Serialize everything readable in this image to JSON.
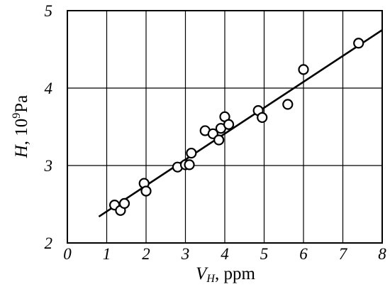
{
  "chart_data": {
    "type": "scatter",
    "x_axis": {
      "label_var": "V",
      "label_sub": "H",
      "label_rest": ", ppm",
      "range": [
        0,
        8
      ],
      "ticks": [
        "0",
        "1",
        "2",
        "3",
        "4",
        "5",
        "6",
        "7",
        "8"
      ]
    },
    "y_axis": {
      "label_var": "H",
      "label_rest": ", 10",
      "label_sup": "9",
      "label_unit": "Pa",
      "range": [
        2,
        5
      ],
      "ticks": [
        "2",
        "3",
        "4",
        "5"
      ]
    },
    "grid": true,
    "points": [
      {
        "x": 1.2,
        "y": 2.49
      },
      {
        "x": 1.35,
        "y": 2.42
      },
      {
        "x": 1.45,
        "y": 2.51
      },
      {
        "x": 1.95,
        "y": 2.77
      },
      {
        "x": 2.0,
        "y": 2.67
      },
      {
        "x": 2.8,
        "y": 2.98
      },
      {
        "x": 3.0,
        "y": 3.01
      },
      {
        "x": 3.1,
        "y": 3.01
      },
      {
        "x": 3.15,
        "y": 3.16
      },
      {
        "x": 3.5,
        "y": 3.45
      },
      {
        "x": 3.7,
        "y": 3.41
      },
      {
        "x": 3.85,
        "y": 3.33
      },
      {
        "x": 3.9,
        "y": 3.48
      },
      {
        "x": 4.0,
        "y": 3.63
      },
      {
        "x": 4.1,
        "y": 3.53
      },
      {
        "x": 4.85,
        "y": 3.71
      },
      {
        "x": 4.95,
        "y": 3.62
      },
      {
        "x": 5.6,
        "y": 3.79
      },
      {
        "x": 6.0,
        "y": 4.24
      },
      {
        "x": 7.4,
        "y": 4.58
      }
    ],
    "fit_line": {
      "x": [
        0.8,
        8.0
      ],
      "y": [
        2.34,
        4.75
      ]
    }
  }
}
